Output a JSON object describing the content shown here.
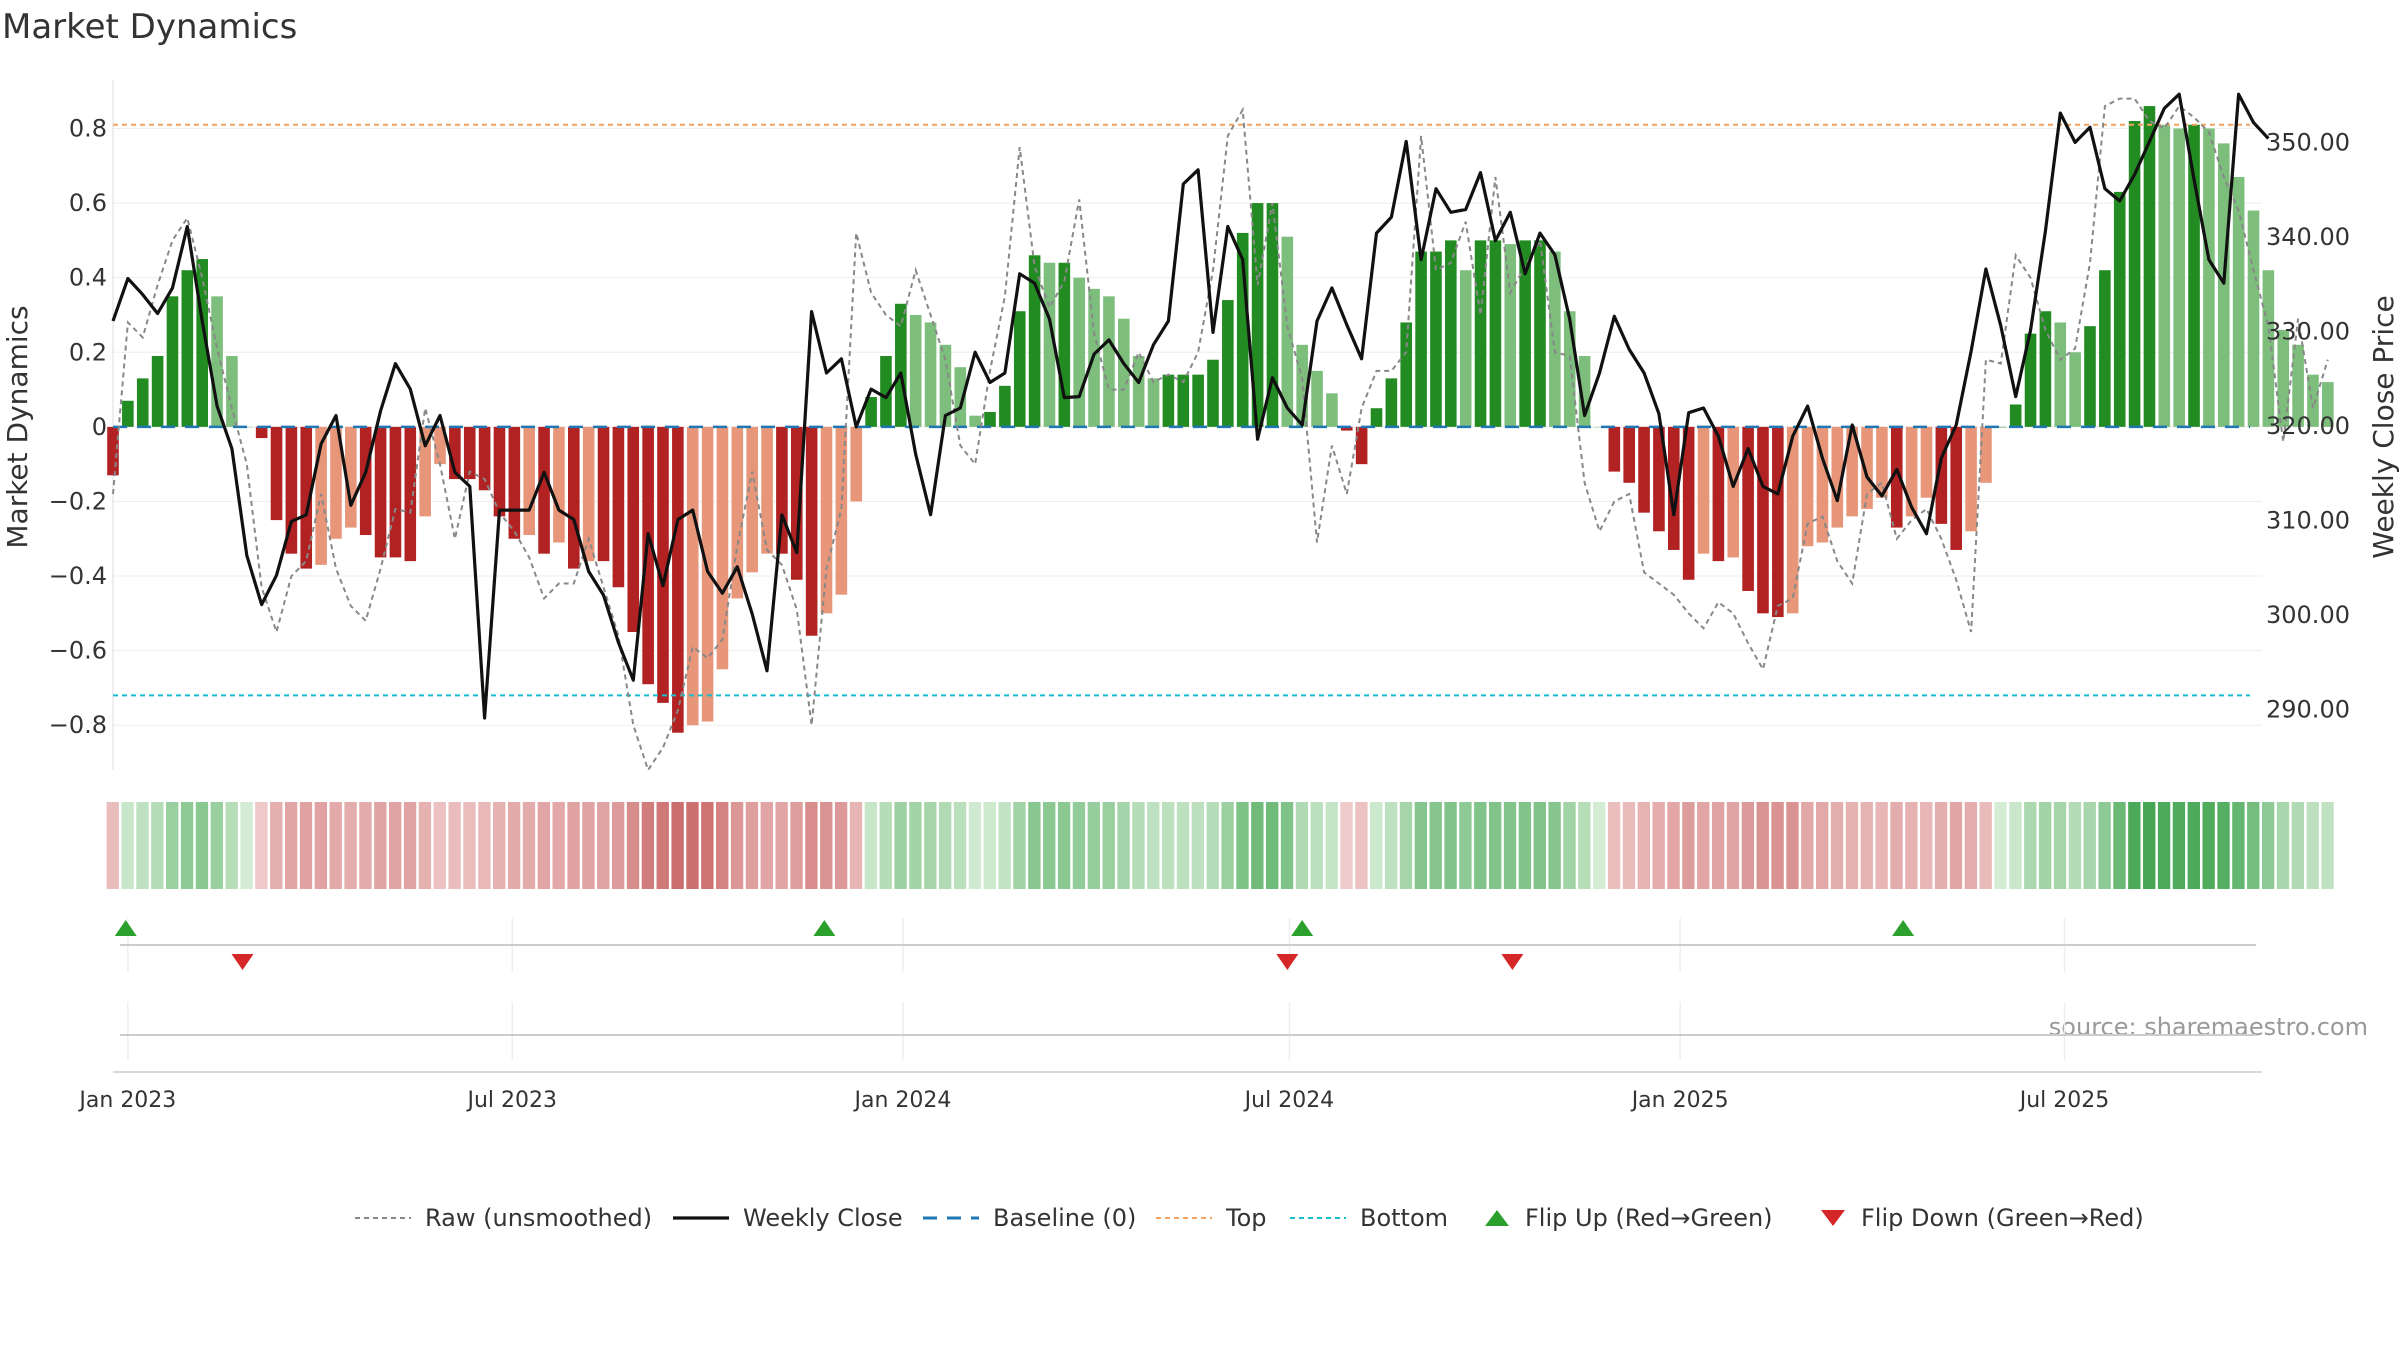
{
  "title": "Market Dynamics",
  "source": "source: sharemaestro.com",
  "colors": {
    "strong_green": "#228B22",
    "light_green": "#7DBE7D",
    "strong_red": "#B22222",
    "light_red": "#E8967A",
    "close_line": "#111111",
    "raw_line": "#888888",
    "baseline": "#1F77B4",
    "top": "#F4A460",
    "bottom": "#17BECF",
    "flip_up": "#2CA02C",
    "flip_down": "#D62728"
  },
  "chart_data": {
    "type": "bar",
    "title": "Market Dynamics",
    "ylabel": "Market Dynamics",
    "y2label": "Weekly Close Price",
    "ylim": [
      -0.92,
      0.93
    ],
    "y2lim": [
      283.5,
      356.5
    ],
    "x_range": [
      "2022-12-25",
      "2025-10-02"
    ],
    "y_ticks": [
      "0.8",
      "0.6",
      "0.4",
      "0.2",
      "0",
      "−0.2",
      "−0.4",
      "−0.6",
      "−0.8"
    ],
    "y_tick_values": [
      0.8,
      0.6,
      0.4,
      0.2,
      0,
      -0.2,
      -0.4,
      -0.6,
      -0.8
    ],
    "y2_ticks": [
      "350.00",
      "340.00",
      "330.00",
      "320.00",
      "310.00",
      "300.00",
      "290.00"
    ],
    "y2_tick_values": [
      350,
      340,
      330,
      320,
      310,
      300,
      290
    ],
    "x_ticks": [
      "Jan 2023",
      "Jul 2023",
      "Jan 2024",
      "Jul 2024",
      "Jan 2025",
      "Jul 2025"
    ],
    "x_tick_dates": [
      "2023-01-01",
      "2023-07-01",
      "2024-01-01",
      "2024-07-01",
      "2025-01-01",
      "2025-07-01"
    ],
    "top_level": 0.81,
    "bottom_level": -0.72,
    "legend_position": "bottom",
    "legend": [
      "Raw (unsmoothed)",
      "Weekly Close",
      "Baseline (0)",
      "Top",
      "Bottom",
      "Flip Up (Red→Green)",
      "Flip Down (Green→Red)"
    ],
    "series": [
      {
        "name": "Market Dynamics",
        "start": "2022-12-25",
        "step_days": 7,
        "values": [
          -0.13,
          0.07,
          0.13,
          0.19,
          0.35,
          0.42,
          0.45,
          0.35,
          0.19,
          0.0,
          -0.03,
          -0.25,
          -0.34,
          -0.38,
          -0.37,
          -0.3,
          -0.27,
          -0.29,
          -0.35,
          -0.35,
          -0.36,
          -0.24,
          -0.1,
          -0.14,
          -0.14,
          -0.17,
          -0.24,
          -0.3,
          -0.29,
          -0.34,
          -0.31,
          -0.38,
          -0.36,
          -0.36,
          -0.43,
          -0.55,
          -0.69,
          -0.74,
          -0.82,
          -0.8,
          -0.79,
          -0.65,
          -0.46,
          -0.39,
          -0.34,
          -0.34,
          -0.41,
          -0.56,
          -0.5,
          -0.45,
          -0.2,
          0.08,
          0.19,
          0.33,
          0.3,
          0.28,
          0.22,
          0.16,
          0.03,
          0.04,
          0.11,
          0.31,
          0.46,
          0.44,
          0.44,
          0.4,
          0.37,
          0.35,
          0.29,
          0.19,
          0.13,
          0.14,
          0.14,
          0.14,
          0.18,
          0.34,
          0.52,
          0.6,
          0.6,
          0.51,
          0.22,
          0.15,
          0.09,
          -0.01,
          -0.1,
          0.05,
          0.13,
          0.28,
          0.47,
          0.47,
          0.5,
          0.42,
          0.5,
          0.5,
          0.49,
          0.5,
          0.5,
          0.47,
          0.31,
          0.19,
          0.0,
          -0.12,
          -0.15,
          -0.23,
          -0.28,
          -0.33,
          -0.41,
          -0.34,
          -0.36,
          -0.35,
          -0.44,
          -0.5,
          -0.51,
          -0.5,
          -0.32,
          -0.31,
          -0.27,
          -0.24,
          -0.22,
          -0.19,
          -0.27,
          -0.24,
          -0.19,
          -0.26,
          -0.33,
          -0.28,
          -0.15,
          0.0,
          0.06,
          0.25,
          0.31,
          0.28,
          0.2,
          0.27,
          0.42,
          0.63,
          0.82,
          0.86,
          0.81,
          0.8,
          0.81,
          0.8,
          0.76,
          0.67,
          0.58,
          0.42,
          0.26,
          0.22,
          0.14,
          0.12
        ]
      },
      {
        "name": "Weekly Close",
        "start": "2022-12-25",
        "step_days": 7,
        "values": [
          331,
          335.5,
          333.8,
          331.8,
          334.5,
          341,
          331,
          322,
          317.5,
          306.2,
          301,
          304.1,
          309.8,
          310.5,
          318,
          321,
          311.5,
          315,
          321.5,
          326.5,
          323.8,
          317.8,
          321,
          315,
          313.5,
          289,
          311,
          311,
          311,
          315,
          311,
          310,
          304.5,
          302,
          297,
          293,
          308.5,
          303,
          310,
          311,
          304.5,
          302.2,
          305,
          300,
          294,
          310.5,
          306.5,
          332,
          325.5,
          327,
          319.8,
          323.8,
          322.9,
          325.5,
          316.9,
          310.5,
          321,
          321.8,
          327.7,
          324.5,
          325.5,
          336,
          335,
          331.2,
          322.9,
          323,
          327.5,
          329,
          326.5,
          324.5,
          328.5,
          331,
          345.5,
          347,
          329.8,
          341,
          337.5,
          318.5,
          325,
          321.8,
          320,
          331,
          334.5,
          330.6,
          327,
          340.3,
          342,
          350,
          337.5,
          345,
          342.5,
          342.8,
          346.7,
          339.5,
          342.5,
          336,
          340.3,
          338,
          331.2,
          321,
          325.5,
          331.5,
          328,
          325.5,
          321.2,
          310.5,
          321.3,
          321.8,
          318.8,
          313.5,
          317.5,
          313.5,
          312.7,
          318.8,
          322,
          316.5,
          312,
          320,
          314.5,
          312.5,
          315.3,
          311.3,
          308.5,
          316.5,
          320,
          327.8,
          336.5,
          330.5,
          323,
          330,
          340.5,
          353,
          349.9,
          351.5,
          345,
          343.7,
          346.5,
          350,
          353.5,
          355,
          346,
          337.5,
          335,
          355,
          352,
          350.3
        ]
      },
      {
        "name": "Raw (unsmoothed)",
        "start": "2022-12-25",
        "step_days": 7,
        "values": [
          -0.18,
          0.28,
          0.24,
          0.38,
          0.5,
          0.56,
          0.4,
          0.21,
          0.05,
          -0.1,
          -0.43,
          -0.55,
          -0.4,
          -0.36,
          -0.18,
          -0.38,
          -0.48,
          -0.52,
          -0.38,
          -0.22,
          -0.23,
          0.05,
          -0.1,
          -0.3,
          -0.12,
          -0.14,
          -0.23,
          -0.28,
          -0.35,
          -0.46,
          -0.42,
          -0.42,
          -0.3,
          -0.43,
          -0.56,
          -0.8,
          -0.92,
          -0.86,
          -0.76,
          -0.59,
          -0.62,
          -0.57,
          -0.32,
          -0.12,
          -0.33,
          -0.37,
          -0.49,
          -0.8,
          -0.38,
          -0.22,
          0.52,
          0.36,
          0.3,
          0.27,
          0.42,
          0.3,
          0.18,
          -0.05,
          -0.1,
          0.15,
          0.35,
          0.75,
          0.43,
          0.32,
          0.39,
          0.61,
          0.25,
          0.1,
          0.1,
          0.2,
          0.12,
          0.14,
          0.12,
          0.2,
          0.42,
          0.78,
          0.85,
          0.38,
          0.6,
          0.27,
          0.13,
          -0.31,
          -0.05,
          -0.18,
          0.05,
          0.15,
          0.15,
          0.2,
          0.78,
          0.42,
          0.44,
          0.55,
          0.3,
          0.67,
          0.36,
          0.43,
          0.5,
          0.2,
          0.19,
          -0.15,
          -0.28,
          -0.2,
          -0.18,
          -0.39,
          -0.42,
          -0.45,
          -0.5,
          -0.54,
          -0.47,
          -0.5,
          -0.58,
          -0.65,
          -0.48,
          -0.46,
          -0.26,
          -0.24,
          -0.36,
          -0.42,
          -0.18,
          -0.15,
          -0.3,
          -0.25,
          -0.22,
          -0.3,
          -0.41,
          -0.55,
          0.18,
          0.17,
          0.46,
          0.4,
          0.26,
          0.18,
          0.21,
          0.44,
          0.86,
          0.88,
          0.88,
          0.82,
          0.8,
          0.86,
          0.83,
          0.79,
          0.67,
          0.58,
          0.42,
          0.27,
          -0.04,
          0.29,
          0.05,
          0.18
        ]
      },
      {
        "name": "Flip Up (Red→Green)",
        "dates": [
          "2022-12-31",
          "2023-11-25",
          "2024-07-07",
          "2025-04-16"
        ]
      },
      {
        "name": "Flip Down (Green→Red)",
        "dates": [
          "2023-02-24",
          "2024-06-30",
          "2024-10-14"
        ]
      }
    ]
  }
}
